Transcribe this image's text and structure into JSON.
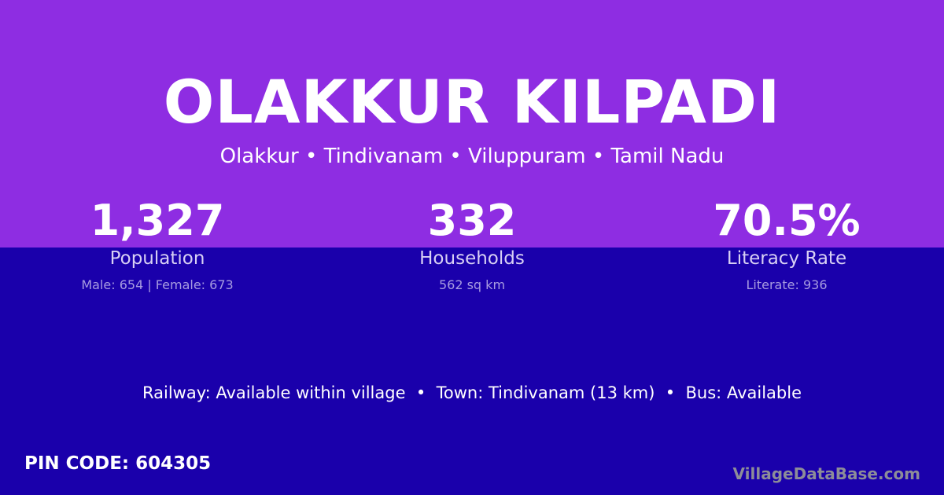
{
  "colors": {
    "top_background": "#8e2de2",
    "bottom_background": "#1a00ab"
  },
  "header": {
    "title": "OLAKKUR KILPADI",
    "subtitle": "Olakkur • Tindivanam • Viluppuram • Tamil Nadu"
  },
  "stats": [
    {
      "value": "1,327",
      "label": "Population",
      "detail": "Male: 654 | Female: 673"
    },
    {
      "value": "332",
      "label": "Households",
      "detail": "562 sq km"
    },
    {
      "value": "70.5%",
      "label": "Literacy Rate",
      "detail": "Literate: 936"
    }
  ],
  "facts": "Railway: Available within village  •  Town: Tindivanam (13 km)  •  Bus: Available",
  "pin_code": "PIN CODE: 604305",
  "brand": "VillageDataBase.com"
}
